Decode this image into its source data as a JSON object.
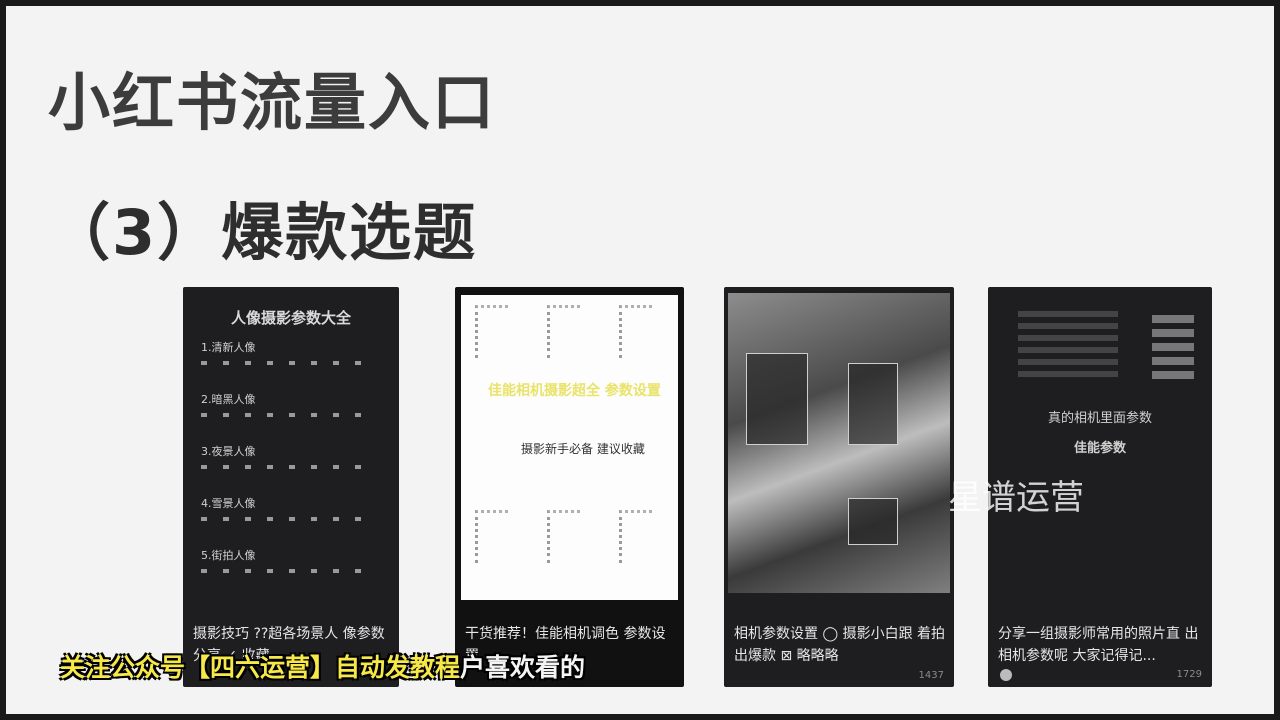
{
  "slide": {
    "title": "小红书流量入口",
    "subtitle": "（3）爆款选题"
  },
  "cards": [
    {
      "title": "人像摄影参数大全",
      "items": [
        "1.清新人像",
        "2.暗黑人像",
        "3.夜景人像",
        "4.雪景人像",
        "5.街拍人像"
      ],
      "caption": "摄影技巧 ??超各场景人 像参数分享 ✓ 收藏",
      "likes": ""
    },
    {
      "highlight": "佳能相机摄影超全 参数设置",
      "sub": "摄影新手必备 建议收藏",
      "caption": "干货推荐！佳能相机调色 参数设置",
      "likes": ""
    },
    {
      "caption": "相机参数设置 ◯ 摄影小白跟 着拍出爆款 ⊠ 略略略",
      "likes": "1437"
    },
    {
      "line1": "真的相机里面参数",
      "line2": "佳能参数",
      "caption": "分享一组摄影师常用的照片直 出相机参数呢 大家记得记...",
      "likes": "1729"
    }
  ],
  "watermark": "星谱运营",
  "overlay": {
    "yellow": "关注公众号【四六运营】自动发教程",
    "white": "户喜欢看的"
  }
}
